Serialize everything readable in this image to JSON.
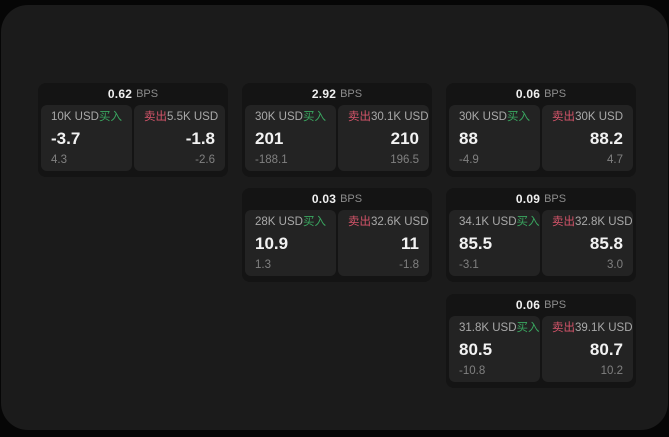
{
  "labels": {
    "buy": "买入",
    "sell": "卖出",
    "bps_unit": "BPS"
  },
  "colors": {
    "surface_bg": "#1b1b1b",
    "card_bg": "#141414",
    "panel_bg": "#232323",
    "buy_green": "#3aa760",
    "sell_red": "#d4546a",
    "value_white": "#f2f2f2",
    "muted_gray": "#8c8c8c"
  },
  "cards": [
    {
      "bps": "0.62",
      "buy": {
        "amount": "10K USD",
        "value": "-3.7",
        "sub": "4.3"
      },
      "sell": {
        "amount": "5.5K USD",
        "value": "-1.8",
        "sub": "-2.6"
      }
    },
    {
      "bps": "2.92",
      "buy": {
        "amount": "30K USD",
        "value": "201",
        "sub": "-188.1"
      },
      "sell": {
        "amount": "30.1K USD",
        "value": "210",
        "sub": "196.5"
      }
    },
    {
      "bps": "0.06",
      "buy": {
        "amount": "30K USD",
        "value": "88",
        "sub": "-4.9"
      },
      "sell": {
        "amount": "30K USD",
        "value": "88.2",
        "sub": "4.7"
      }
    },
    {
      "bps": "0.03",
      "buy": {
        "amount": "28K USD",
        "value": "10.9",
        "sub": "1.3"
      },
      "sell": {
        "amount": "32.6K USD",
        "value": "11",
        "sub": "-1.8"
      }
    },
    {
      "bps": "0.09",
      "buy": {
        "amount": "34.1K USD",
        "value": "85.5",
        "sub": "-3.1"
      },
      "sell": {
        "amount": "32.8K USD",
        "value": "85.8",
        "sub": "3.0"
      }
    },
    {
      "bps": "0.06",
      "buy": {
        "amount": "31.8K USD",
        "value": "80.5",
        "sub": "-10.8"
      },
      "sell": {
        "amount": "39.1K USD",
        "value": "80.7",
        "sub": "10.2"
      }
    }
  ]
}
